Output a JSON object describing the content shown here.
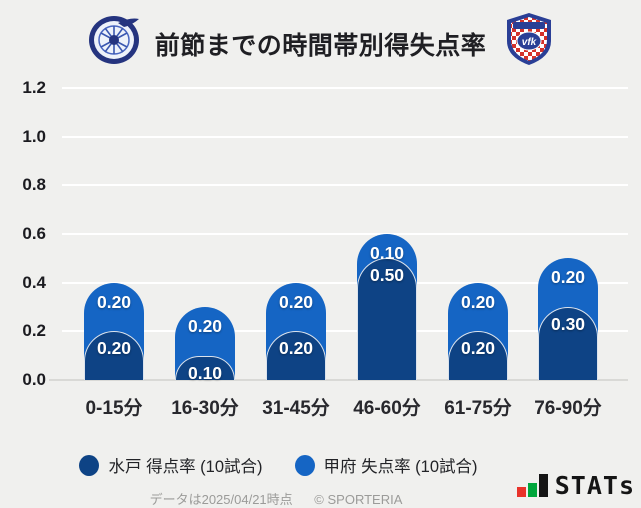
{
  "header": {
    "title": "前節までの時間帯別得失点率",
    "left_logo": "水戸ホーリーホック",
    "right_logo": "ヴァンフォーレ甲府",
    "kofu_logo_text": "vfk"
  },
  "chart_data": {
    "type": "bar",
    "stacked": true,
    "grid": true,
    "legend_position": "bottom",
    "categories": [
      "0-15分",
      "16-30分",
      "31-45分",
      "46-60分",
      "61-75分",
      "76-90分"
    ],
    "series": [
      {
        "name": "水戸 得点率 (10試合)",
        "color": "#0e4385",
        "values": [
          0.2,
          0.1,
          0.2,
          0.5,
          0.2,
          0.3
        ]
      },
      {
        "name": "甲府 失点率 (10試合)",
        "color": "#1565c4",
        "values": [
          0.2,
          0.2,
          0.2,
          0.1,
          0.2,
          0.2
        ]
      }
    ],
    "y_ticks": [
      "0.0",
      "0.2",
      "0.4",
      "0.6",
      "0.8",
      "1.0",
      "1.2"
    ],
    "ylim": [
      0,
      1.2
    ],
    "value_labels": true,
    "background": "#f0f0ee"
  },
  "footer": {
    "note": "データは2025/04/21時点",
    "copyright": "© SPORTERIA",
    "brand": "STATs",
    "logo_colors": {
      "red": "#e8332a",
      "green": "#00a63c",
      "black": "#151515"
    }
  }
}
